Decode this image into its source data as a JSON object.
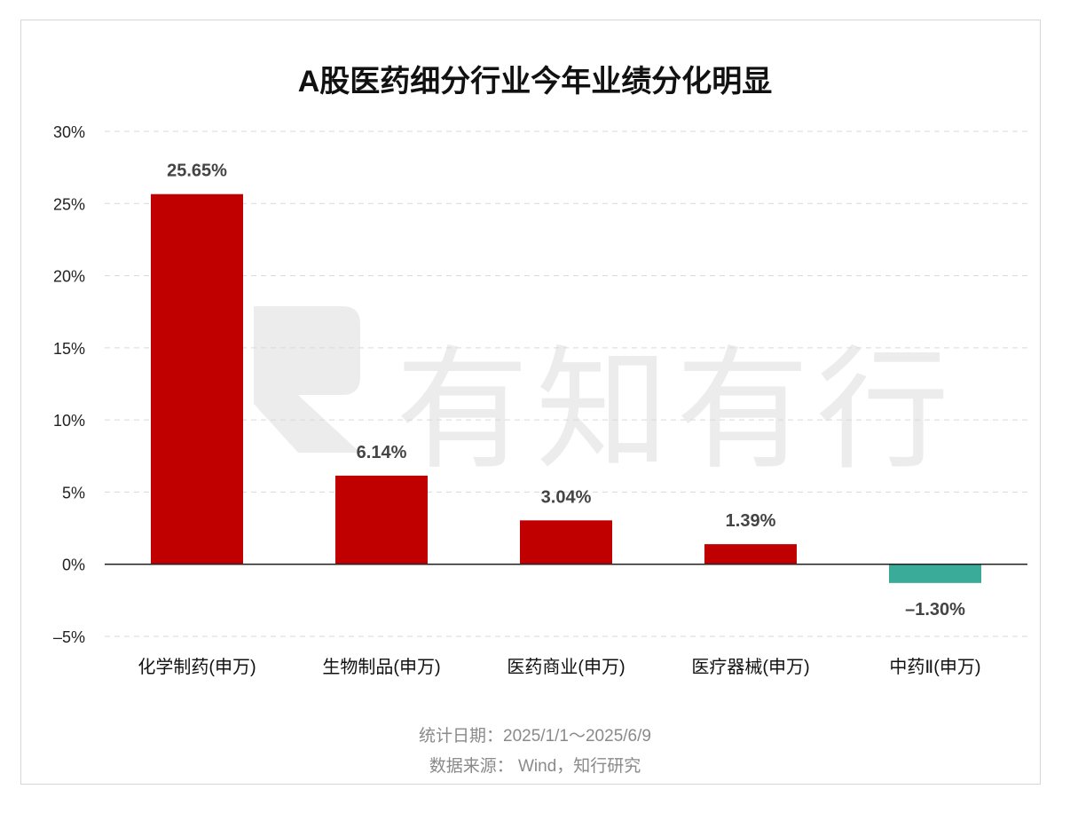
{
  "chart_data": {
    "type": "bar",
    "title": "A股医药细分行业今年业绩分化明显",
    "categories": [
      "化学制药(申万)",
      "生物制品(申万)",
      "医药商业(申万)",
      "医疗器械(申万)",
      "中药Ⅱ(申万)"
    ],
    "values": [
      25.65,
      6.14,
      3.04,
      1.39,
      -1.3
    ],
    "data_labels": [
      "25.65%",
      "6.14%",
      "3.04%",
      "1.39%",
      "–1.30%"
    ],
    "ylim": [
      -5,
      30
    ],
    "yticks": [
      30,
      25,
      20,
      15,
      10,
      5,
      0,
      -5
    ],
    "ytick_labels": [
      "30%",
      "25%",
      "20%",
      "15%",
      "10%",
      "5%",
      "0%",
      "–5%"
    ],
    "xlabel": "",
    "ylabel": "",
    "grid": true,
    "colors": {
      "positive": "#c00000",
      "negative": "#3aaa99"
    }
  },
  "watermark": {
    "text": "有知有行"
  },
  "footer": {
    "date_range": "统计日期：2025/1/1～2025/6/9",
    "source": "数据来源： Wind，知行研究"
  }
}
